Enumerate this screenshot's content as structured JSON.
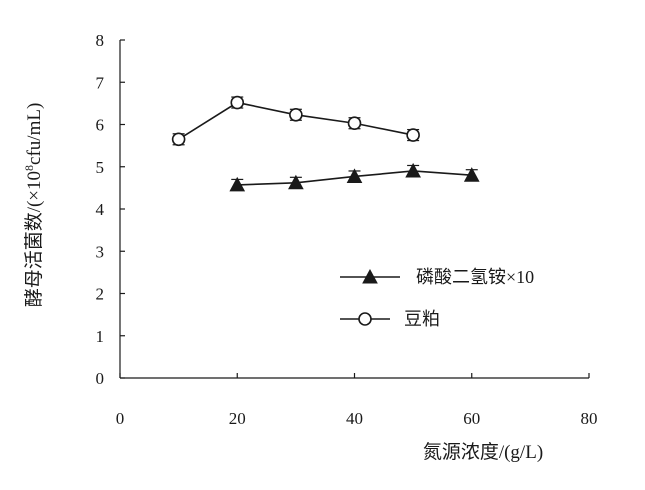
{
  "chart_data": {
    "type": "line",
    "title": "",
    "xlabel": "氮源浓度/(g/L)",
    "ylabel_prefix": "酵母活菌数/(×10",
    "ylabel_exp": "8",
    "ylabel_suffix": "cfu/mL)",
    "xlim": [
      0,
      80
    ],
    "ylim": [
      0,
      8
    ],
    "xticks": [
      "0",
      "20",
      "40",
      "60",
      "80"
    ],
    "yticks": [
      "0",
      "1",
      "2",
      "3",
      "4",
      "5",
      "6",
      "7",
      "8"
    ],
    "grid": false,
    "legend_position": "center-right",
    "series": [
      {
        "name": "磷酸二氢铵×10",
        "marker": "filled-triangle",
        "color": "#1a1a1a",
        "x": [
          20,
          30,
          40,
          50,
          60
        ],
        "y": [
          4.57,
          4.62,
          4.77,
          4.9,
          4.8
        ],
        "error": [
          0.13,
          0.13,
          0.13,
          0.13,
          0.13
        ]
      },
      {
        "name": "豆粕",
        "marker": "open-circle",
        "color": "#1a1a1a",
        "x": [
          10,
          20,
          30,
          40,
          50
        ],
        "y": [
          5.65,
          6.52,
          6.23,
          6.03,
          5.75
        ],
        "error": [
          0.13,
          0.13,
          0.13,
          0.13,
          0.13
        ]
      }
    ]
  }
}
